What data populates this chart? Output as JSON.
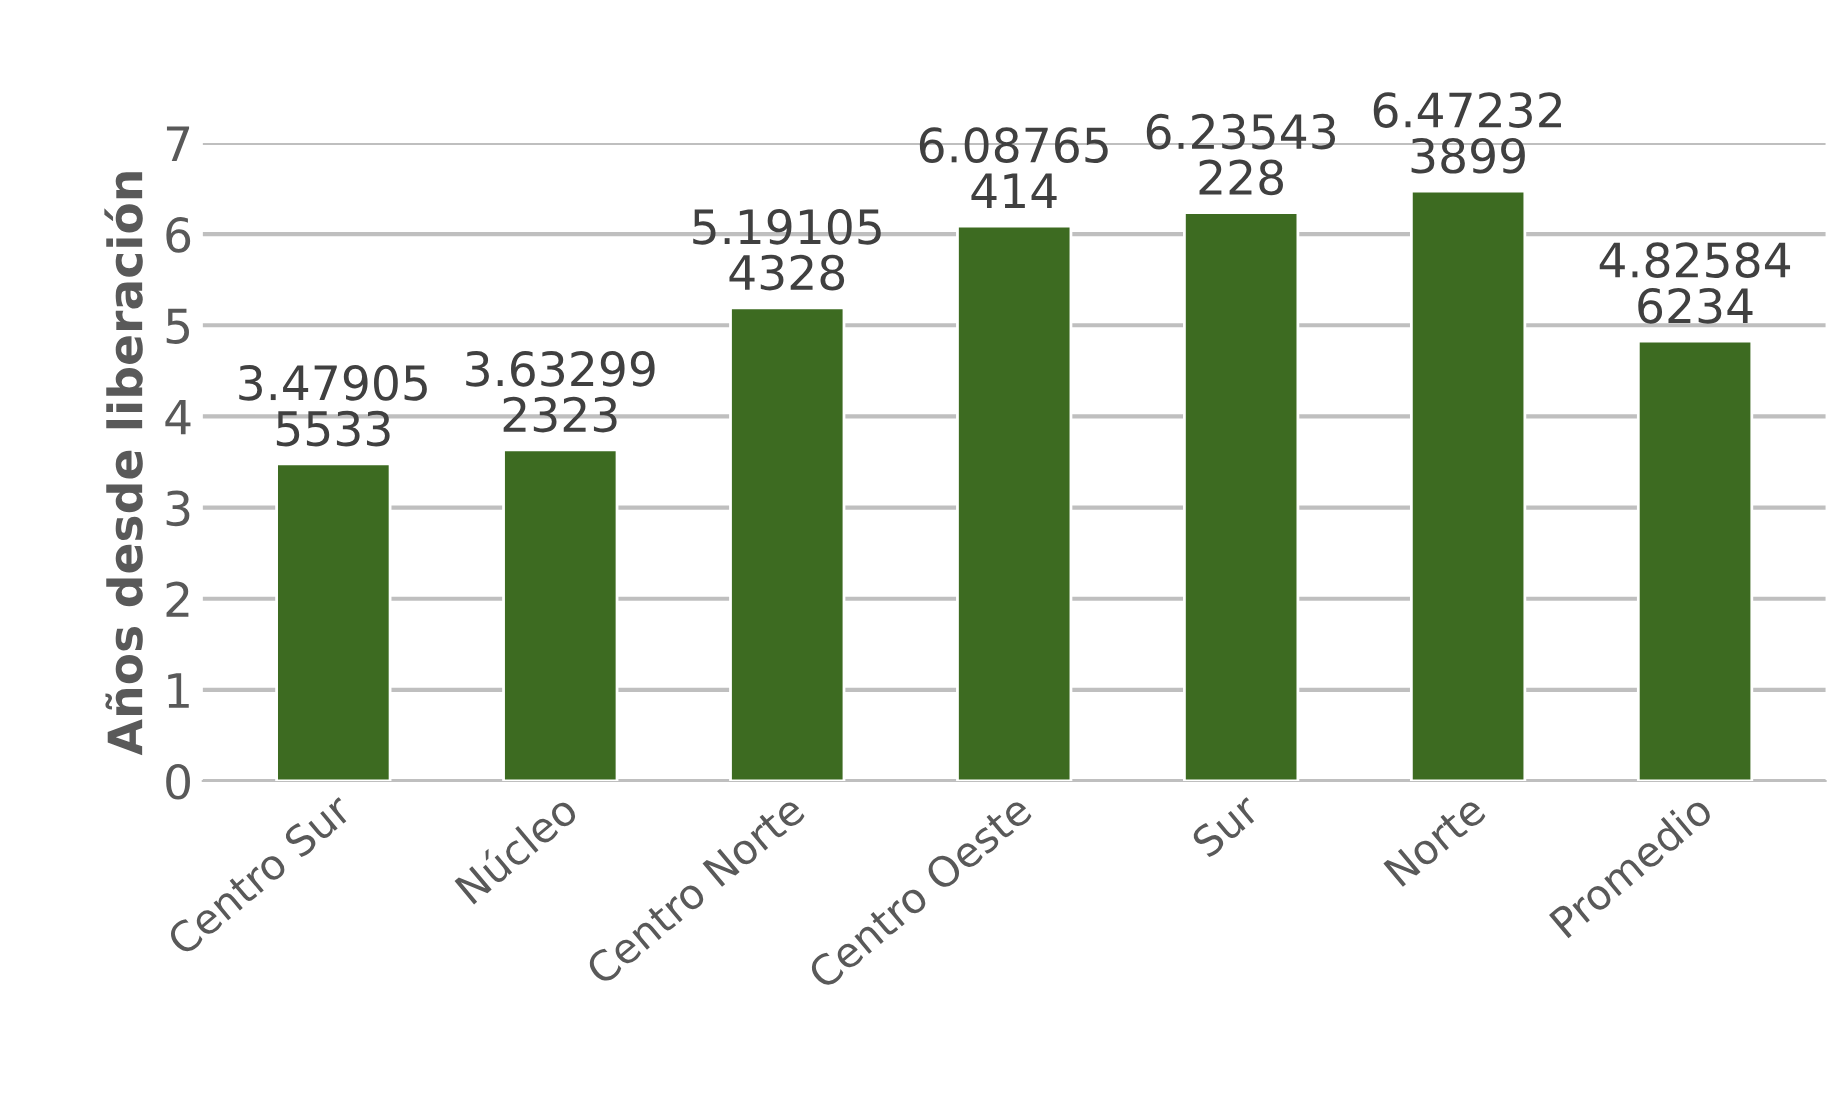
{
  "chart_data": {
    "type": "bar",
    "ylabel": "Años desde liberación",
    "categories": [
      "Centro Sur",
      "Núcleo",
      "Centro Norte",
      "Centro Oeste",
      "Sur",
      "Norte",
      "Promedio"
    ],
    "values": [
      3.479055533,
      3.632992323,
      5.191054328,
      6.08765414,
      6.23543228,
      6.472323899,
      4.825846234
    ],
    "value_labels": [
      "3.479055533",
      "3.632992323",
      "5.191054328",
      "6.08765414",
      "6.23543228",
      "6.472323899",
      "4.825846234"
    ],
    "color": "#3d6b21",
    "ylim": [
      0,
      7
    ],
    "yticks": [
      0,
      1,
      2,
      3,
      4,
      5,
      6,
      7
    ],
    "grid": "y",
    "legend": false
  }
}
